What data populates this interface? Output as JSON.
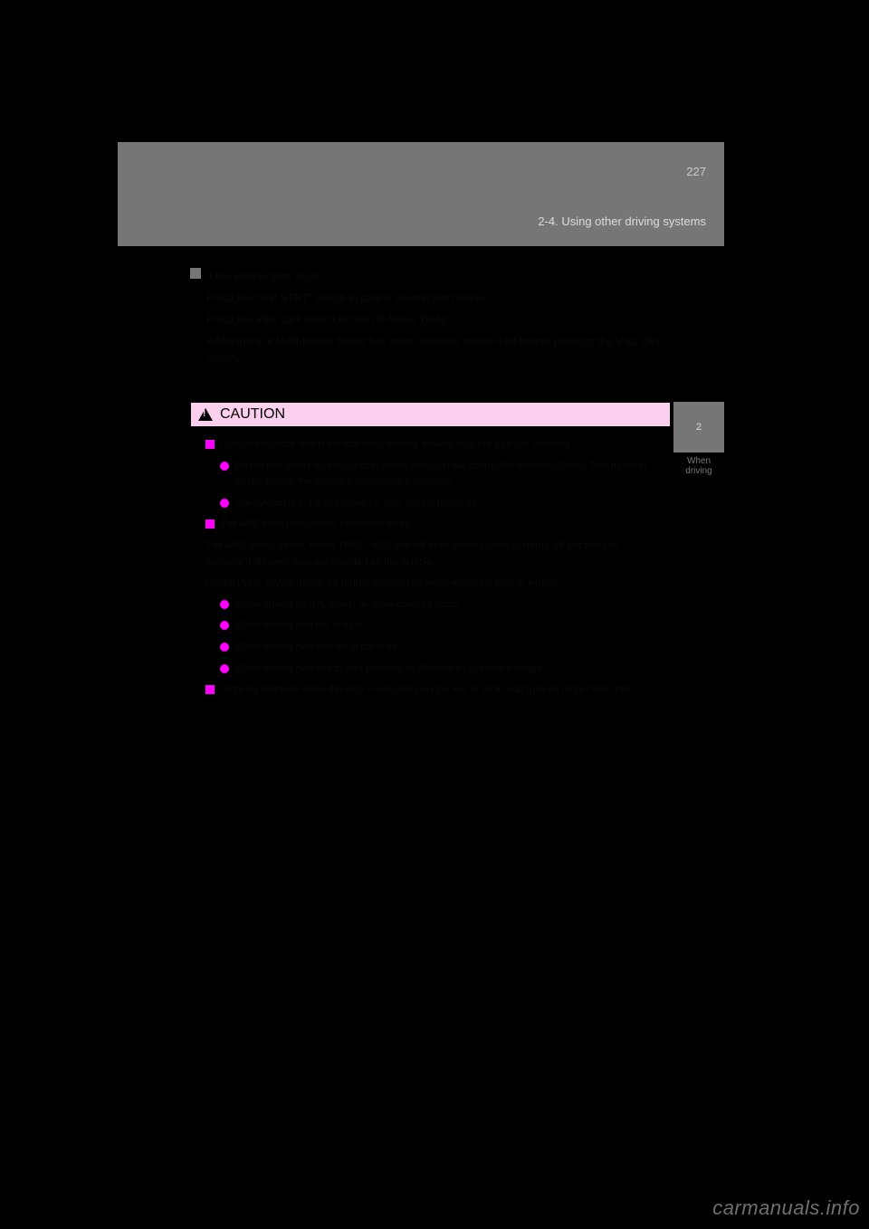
{
  "header": {
    "page_number": "227",
    "section": "2-4. Using other driving systems"
  },
  "side_tab": {
    "number": "2",
    "label": "When driving"
  },
  "intro": {
    "heading": "If the vehicle gets stuck",
    "para1": "Press the \"2nd STRT\" switch to cancel second start mode.",
    "para2": "Press the VSC OFF switch to turn off Active TRAC.",
    "para3": "Additionally, if Multi-terrain Select has been selected, switch it off before pressing the VSC OFF switch."
  },
  "caution": {
    "label": "CAUTION",
    "items": [
      {
        "marker": "sq",
        "indent": 0,
        "text": "Conditions under which the rear view monitor system may not function correctly"
      },
      {
        "marker": "dot",
        "indent": 1,
        "text": "Do not rely solely on the hill-start assist control/crawl control/Multi-terrain Select. This function do not extend the vehicle's performance limitation."
      },
      {
        "marker": "dot",
        "indent": 1,
        "text": "The system is not a substitute for safe driving practices."
      },
      {
        "marker": "sq",
        "indent": 0,
        "text": "The ABS does not operate effectively when"
      },
      {
        "marker": "txt",
        "indent": 0,
        "text": "The ABS, brake assist, Active TRAC, VSC and hill-start assist control systems will not function correctly if different tires are installed on the vehicle."
      },
      {
        "marker": "txt",
        "indent": 0,
        "text": "Contact your Toyota dealer for further information when replacing tires or wheels."
      },
      {
        "marker": "dot",
        "indent": 1,
        "text": "When driving on dirt, gravel or snow-covered roads"
      },
      {
        "marker": "dot",
        "indent": 1,
        "text": "When driving with tire chains"
      },
      {
        "marker": "dot",
        "indent": 1,
        "text": "When driving over bumps in the road"
      },
      {
        "marker": "dot",
        "indent": 1,
        "text": "When driving over roads with potholes or differences in surface height"
      },
      {
        "marker": "sq",
        "indent": 0,
        "text": "Stopping distance when the ABS is operating on the wet or slick road may be longer than that..."
      }
    ]
  },
  "watermark": "carmanuals.info",
  "colors": {
    "bg": "#000000",
    "panel": "#767676",
    "caution_bg": "#fccfef",
    "magenta": "#ff00ff"
  }
}
